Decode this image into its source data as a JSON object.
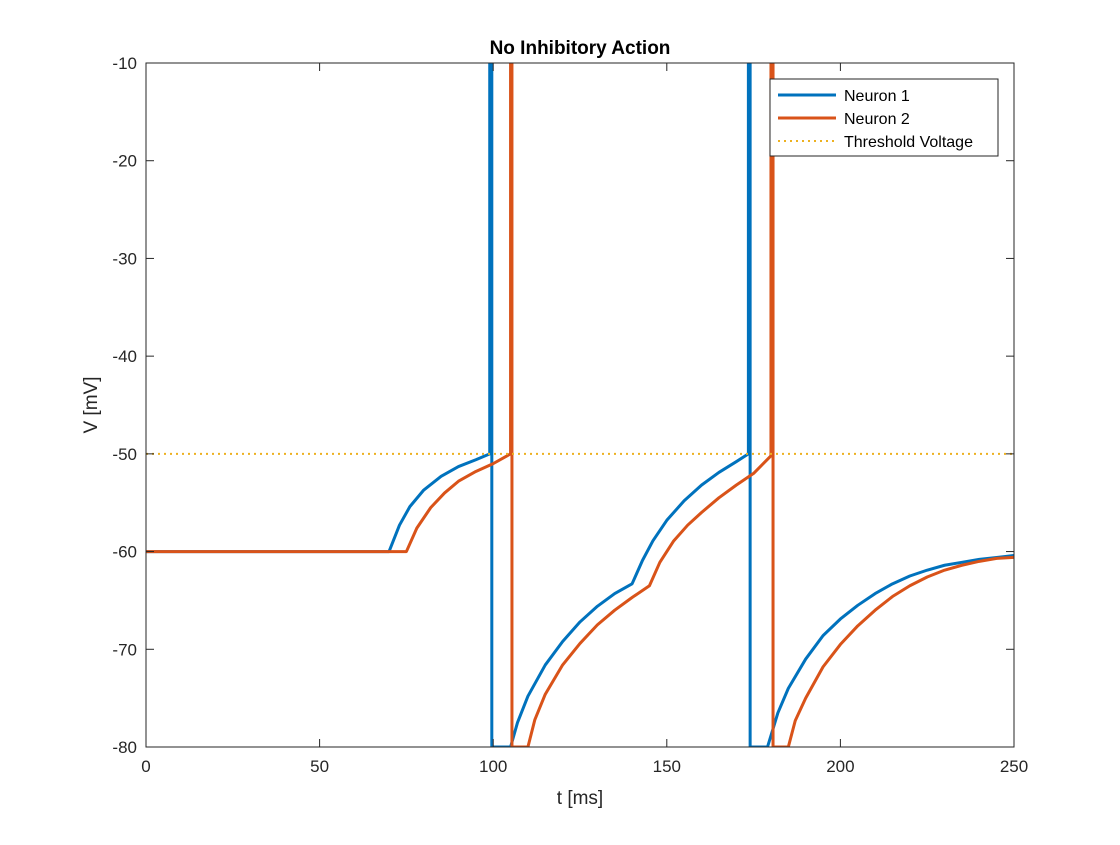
{
  "chart_data": {
    "type": "line",
    "title": "No Inhibitory Action",
    "xlabel": "t [ms]",
    "ylabel": "V [mV]",
    "xlim": [
      0,
      250
    ],
    "ylim": [
      -80,
      -10
    ],
    "xticks": [
      0,
      50,
      100,
      150,
      200,
      250
    ],
    "yticks": [
      -10,
      -20,
      -30,
      -40,
      -50,
      -60,
      -70,
      -80
    ],
    "xtick_labels": [
      "0",
      "50",
      "100",
      "150",
      "200",
      "250"
    ],
    "ytick_labels": [
      "-10",
      "-20",
      "-30",
      "-40",
      "-50",
      "-60",
      "-70",
      "-80"
    ],
    "grid": false,
    "box": true,
    "legend_location": "top-right",
    "series": [
      {
        "name": "Neuron 1",
        "color": "#0072BD",
        "style": "solid",
        "points": [
          [
            0,
            -60
          ],
          [
            70,
            -60
          ],
          [
            73,
            -57.3
          ],
          [
            76,
            -55.4
          ],
          [
            80,
            -53.7
          ],
          [
            85,
            -52.3
          ],
          [
            90,
            -51.3
          ],
          [
            95,
            -50.6
          ],
          [
            99,
            -50
          ],
          [
            99,
            -10
          ],
          [
            99.6,
            -10
          ],
          [
            99.6,
            -80
          ],
          [
            105,
            -80
          ],
          [
            107,
            -77.5
          ],
          [
            110,
            -74.8
          ],
          [
            115,
            -71.6
          ],
          [
            120,
            -69.2
          ],
          [
            125,
            -67.2
          ],
          [
            130,
            -65.6
          ],
          [
            135,
            -64.3
          ],
          [
            140,
            -63.3
          ],
          [
            143,
            -60.9
          ],
          [
            146,
            -58.9
          ],
          [
            150,
            -56.8
          ],
          [
            155,
            -54.8
          ],
          [
            160,
            -53.2
          ],
          [
            165,
            -51.9
          ],
          [
            170,
            -50.8
          ],
          [
            173.5,
            -50
          ],
          [
            173.5,
            -10
          ],
          [
            174,
            -10
          ],
          [
            174,
            -80
          ],
          [
            179,
            -80
          ],
          [
            182,
            -76.5
          ],
          [
            185,
            -74
          ],
          [
            190,
            -71
          ],
          [
            195,
            -68.6
          ],
          [
            200,
            -66.9
          ],
          [
            205,
            -65.5
          ],
          [
            210,
            -64.3
          ],
          [
            215,
            -63.3
          ],
          [
            220,
            -62.5
          ],
          [
            225,
            -61.9
          ],
          [
            230,
            -61.4
          ],
          [
            235,
            -61.1
          ],
          [
            240,
            -60.8
          ],
          [
            245,
            -60.6
          ],
          [
            250,
            -60.4
          ]
        ]
      },
      {
        "name": "Neuron 2",
        "color": "#D95319",
        "style": "solid",
        "points": [
          [
            0,
            -60
          ],
          [
            75,
            -60
          ],
          [
            78,
            -57.6
          ],
          [
            82,
            -55.5
          ],
          [
            86,
            -54
          ],
          [
            90,
            -52.8
          ],
          [
            95,
            -51.8
          ],
          [
            100,
            -51
          ],
          [
            105,
            -50
          ],
          [
            105,
            -10
          ],
          [
            105.4,
            -10
          ],
          [
            105.4,
            -80
          ],
          [
            110,
            -80
          ],
          [
            112,
            -77.2
          ],
          [
            115,
            -74.6
          ],
          [
            120,
            -71.6
          ],
          [
            125,
            -69.4
          ],
          [
            130,
            -67.5
          ],
          [
            135,
            -66
          ],
          [
            140,
            -64.7
          ],
          [
            145,
            -63.5
          ],
          [
            148,
            -61.1
          ],
          [
            152,
            -58.9
          ],
          [
            156,
            -57.3
          ],
          [
            160,
            -56
          ],
          [
            165,
            -54.5
          ],
          [
            170,
            -53.2
          ],
          [
            175,
            -52
          ],
          [
            180,
            -50.2
          ],
          [
            180,
            -10
          ],
          [
            180.6,
            -10
          ],
          [
            180.6,
            -80
          ],
          [
            185,
            -80
          ],
          [
            187,
            -77.3
          ],
          [
            190,
            -75
          ],
          [
            195,
            -71.8
          ],
          [
            200,
            -69.5
          ],
          [
            205,
            -67.6
          ],
          [
            210,
            -66
          ],
          [
            215,
            -64.6
          ],
          [
            220,
            -63.5
          ],
          [
            225,
            -62.6
          ],
          [
            230,
            -61.9
          ],
          [
            235,
            -61.4
          ],
          [
            240,
            -61
          ],
          [
            245,
            -60.7
          ],
          [
            250,
            -60.6
          ]
        ]
      },
      {
        "name": "Threshold Voltage",
        "color": "#EDB120",
        "style": "dotted",
        "points": [
          [
            0,
            -50
          ],
          [
            250,
            -50
          ]
        ]
      }
    ]
  }
}
